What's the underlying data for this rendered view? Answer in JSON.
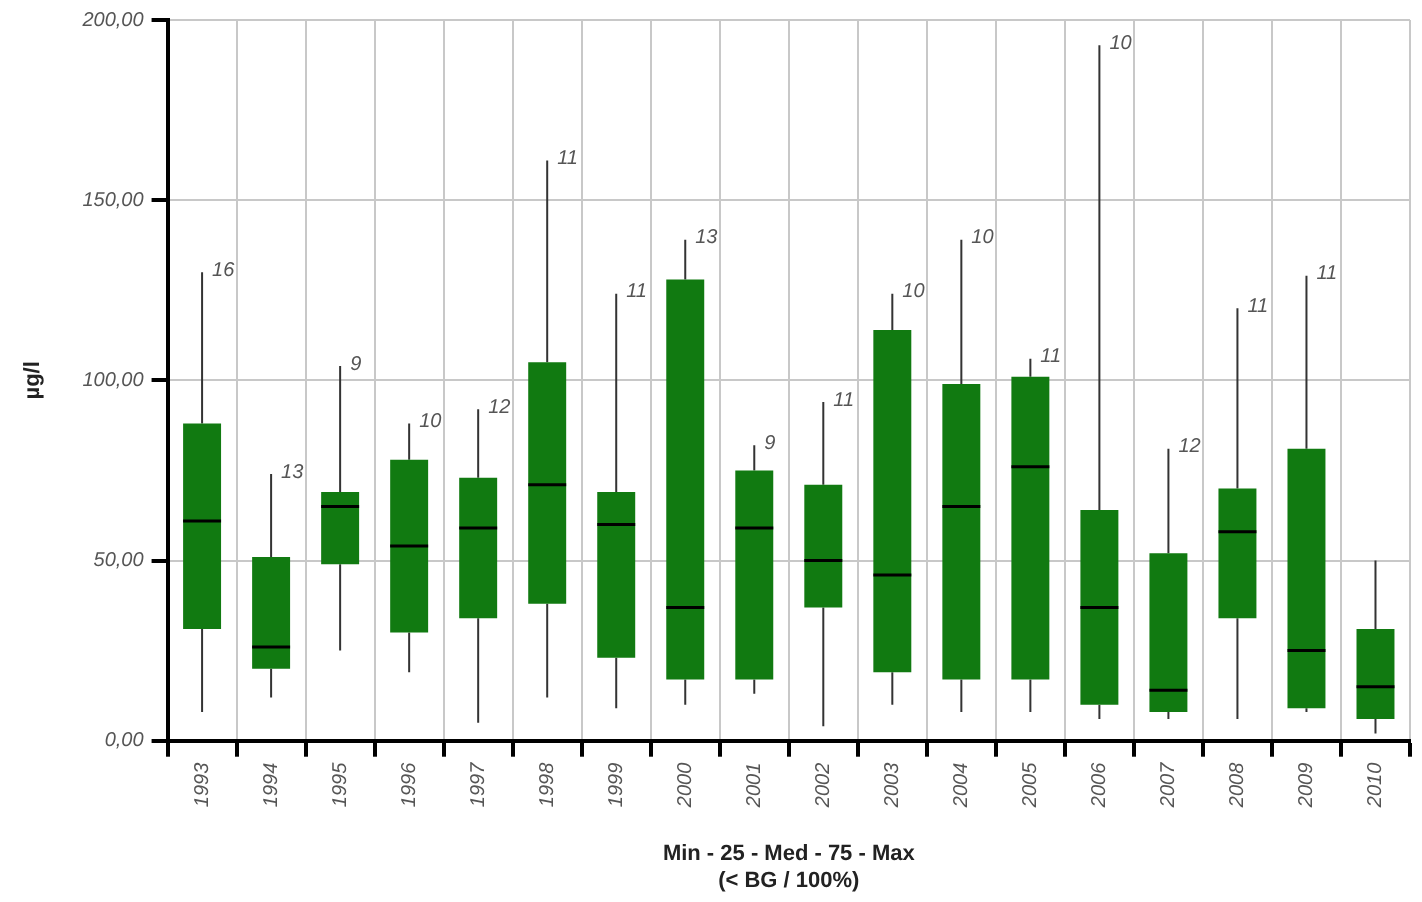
{
  "chart_data": {
    "type": "box",
    "ylabel": "µg/l",
    "xlabel": "Min - 25 - Med - 75 - Max\n(< BG / 100%)",
    "categories": [
      "1993",
      "1994",
      "1995",
      "1996",
      "1997",
      "1998",
      "1999",
      "2000",
      "2001",
      "2002",
      "2003",
      "2004",
      "2005",
      "2006",
      "2007",
      "2008",
      "2009",
      "2010"
    ],
    "color": "#117a11",
    "boxes": [
      {
        "low": 8,
        "q1": 31,
        "median": 61,
        "q3": 88,
        "high": 130
      },
      {
        "low": 12,
        "q1": 20,
        "median": 26,
        "q3": 51,
        "high": 74
      },
      {
        "low": 25,
        "q1": 49,
        "median": 65,
        "q3": 69,
        "high": 104
      },
      {
        "low": 19,
        "q1": 30,
        "median": 54,
        "q3": 78,
        "high": 88
      },
      {
        "low": 5,
        "q1": 34,
        "median": 59,
        "q3": 73,
        "high": 92
      },
      {
        "low": 12,
        "q1": 38,
        "median": 71,
        "q3": 105,
        "high": 161
      },
      {
        "low": 9,
        "q1": 23,
        "median": 60,
        "q3": 69,
        "high": 124
      },
      {
        "low": 10,
        "q1": 17,
        "median": 37,
        "q3": 128,
        "high": 139
      },
      {
        "low": 13,
        "q1": 17,
        "median": 59,
        "q3": 75,
        "high": 82
      },
      {
        "low": 4,
        "q1": 37,
        "median": 50,
        "q3": 71,
        "high": 94
      },
      {
        "low": 10,
        "q1": 19,
        "median": 46,
        "q3": 114,
        "high": 124
      },
      {
        "low": 8,
        "q1": 17,
        "median": 65,
        "q3": 99,
        "high": 139
      },
      {
        "low": 8,
        "q1": 17,
        "median": 76,
        "q3": 101,
        "high": 106
      },
      {
        "low": 6,
        "q1": 10,
        "median": 37,
        "q3": 64,
        "high": 193
      },
      {
        "low": 6,
        "q1": 8,
        "median": 14,
        "q3": 52,
        "high": 81
      },
      {
        "low": 6,
        "q1": 34,
        "median": 58,
        "q3": 70,
        "high": 120
      },
      {
        "low": 8,
        "q1": 9,
        "median": 25,
        "q3": 81,
        "high": 129
      },
      {
        "low": 2,
        "q1": 6,
        "median": 15,
        "q3": 31,
        "high": 50
      }
    ],
    "ylim": [
      0,
      200
    ],
    "yticks": [
      {
        "value": 0,
        "label": "0,00"
      },
      {
        "value": 50,
        "label": "50,00"
      },
      {
        "value": 100,
        "label": "100,00"
      },
      {
        "value": 150,
        "label": "150,00"
      },
      {
        "value": 200,
        "label": "200,00"
      }
    ],
    "grid": true,
    "annotations": [
      {
        "text": "16",
        "x": "1993",
        "y": 130
      },
      {
        "text": "13",
        "x": "1994",
        "y": 74
      },
      {
        "text": "9",
        "x": "1995",
        "y": 104
      },
      {
        "text": "10",
        "x": "1996",
        "y": 88
      },
      {
        "text": "12",
        "x": "1997",
        "y": 92
      },
      {
        "text": "11",
        "x": "1998",
        "y": 161
      },
      {
        "text": "11",
        "x": "1999",
        "y": 124
      },
      {
        "text": "13",
        "x": "2000",
        "y": 139
      },
      {
        "text": "9",
        "x": "2001",
        "y": 82
      },
      {
        "text": "11",
        "x": "2002",
        "y": 94
      },
      {
        "text": "10",
        "x": "2003",
        "y": 124
      },
      {
        "text": "10",
        "x": "2004",
        "y": 139
      },
      {
        "text": "11",
        "x": "2005",
        "y": 106
      },
      {
        "text": "10",
        "x": "2006",
        "y": 193
      },
      {
        "text": "12",
        "x": "2007",
        "y": 81
      },
      {
        "text": "11",
        "x": "2008",
        "y": 120
      },
      {
        "text": "11",
        "x": "2009",
        "y": 129
      }
    ]
  }
}
